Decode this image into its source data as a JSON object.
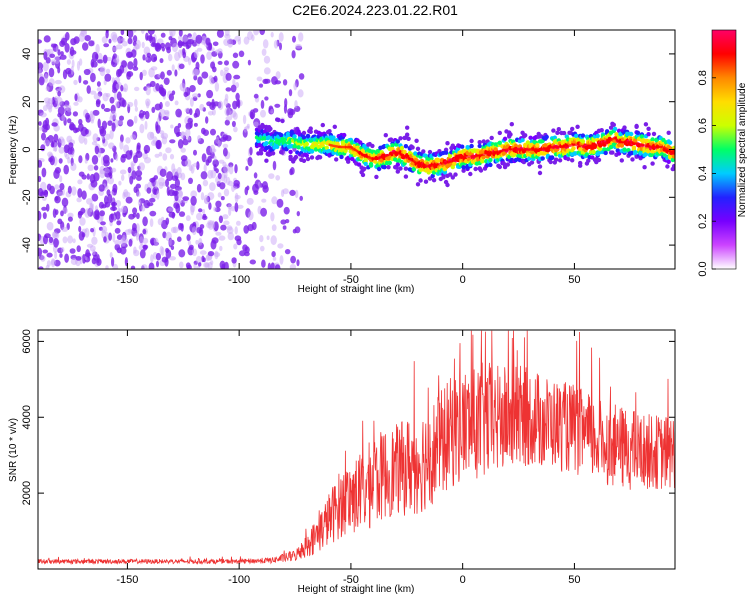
{
  "figure_title": "C2E6.2024.223.01.22.R01",
  "colors": {
    "snr_line": "#ee3333",
    "scatter_noise": "#7a1fe8",
    "scatter_noise_light": "#c9a6f7",
    "colorbar_stops": [
      "#ffffff",
      "#cc44ff",
      "#7700ff",
      "#2222ff",
      "#00ccff",
      "#00ff66",
      "#ccff00",
      "#ffdd00",
      "#ff8800",
      "#ff0000",
      "#ff0066"
    ]
  },
  "chart_data": [
    {
      "type": "scatter",
      "title": "",
      "xlabel": "Height of straight line (km)",
      "ylabel": "Frequency (Hz)",
      "xlim": [
        -190,
        95
      ],
      "ylim": [
        -50,
        50
      ],
      "xticks": [
        -150,
        -100,
        -50,
        0,
        50
      ],
      "yticks": [
        -40,
        -20,
        0,
        20,
        40
      ],
      "grid": false,
      "noise_region_x": [
        -190,
        -72
      ],
      "signal_track": {
        "x": [
          -92,
          -85,
          -80,
          -75,
          -70,
          -65,
          -60,
          -55,
          -50,
          -45,
          -40,
          -35,
          -30,
          -25,
          -20,
          -15,
          -10,
          -5,
          0,
          5,
          10,
          15,
          20,
          25,
          30,
          35,
          40,
          45,
          50,
          55,
          60,
          65,
          68,
          70,
          75,
          80,
          85,
          90,
          95
        ],
        "y": [
          5,
          3,
          4,
          3,
          2,
          2,
          2,
          1,
          1,
          -2,
          -4,
          -3,
          -1,
          -3,
          -6,
          -7,
          -6,
          -5,
          -3,
          -3,
          -2,
          -1,
          0,
          0,
          0,
          0,
          1,
          1,
          2,
          1,
          2,
          3,
          5,
          3,
          3,
          2,
          1,
          1,
          -2
        ]
      },
      "colorbar": {
        "label": "Normalized spectral amplitude",
        "range": [
          0,
          1
        ],
        "ticks": [
          0.0,
          0.2,
          0.4,
          0.6,
          0.8
        ]
      }
    },
    {
      "type": "line",
      "title": "",
      "xlabel": "Height of straight line (km)",
      "ylabel": "SNR (10 * v/v)",
      "xlim": [
        -190,
        95
      ],
      "ylim": [
        0,
        6300
      ],
      "xticks": [
        -150,
        -100,
        -50,
        0,
        50
      ],
      "yticks": [
        2000,
        4000,
        6000
      ],
      "grid": false,
      "envelope": {
        "x": [
          -190,
          -150,
          -100,
          -85,
          -75,
          -70,
          -65,
          -60,
          -55,
          -50,
          -45,
          -40,
          -35,
          -30,
          -25,
          -20,
          -15,
          -10,
          -5,
          0,
          5,
          10,
          15,
          20,
          25,
          30,
          35,
          40,
          45,
          50,
          55,
          60,
          65,
          70,
          75,
          80,
          85,
          90,
          95
        ],
        "mean": [
          200,
          200,
          200,
          230,
          350,
          600,
          900,
          1300,
          1700,
          1900,
          2000,
          2300,
          2500,
          2600,
          2700,
          2800,
          3000,
          3300,
          3600,
          3800,
          3800,
          3900,
          3900,
          3950,
          4000,
          4000,
          3900,
          3850,
          3750,
          3700,
          3500,
          3400,
          3300,
          3200,
          3150,
          3100,
          3100,
          3050,
          3100
        ],
        "spread": [
          60,
          60,
          60,
          80,
          150,
          300,
          500,
          700,
          900,
          1000,
          1100,
          1200,
          1200,
          1200,
          1300,
          1400,
          1400,
          1400,
          1500,
          1500,
          1500,
          1600,
          1500,
          1400,
          1400,
          1300,
          1300,
          1200,
          1200,
          1200,
          1200,
          1100,
          1100,
          1100,
          1100,
          1000,
          1000,
          1000,
          1000
        ]
      }
    }
  ]
}
